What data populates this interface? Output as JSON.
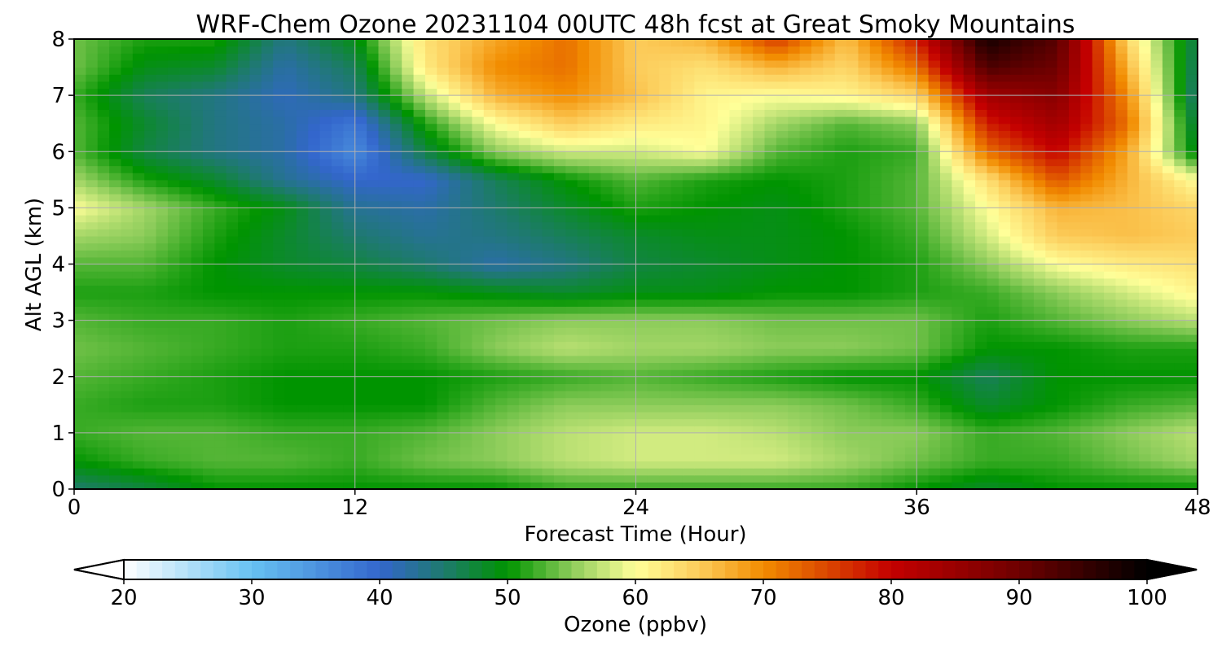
{
  "chart_data": {
    "type": "heatmap",
    "title": "WRF-Chem Ozone  20231104 00UTC 48h fcst at Great Smoky Mountains",
    "xlabel": "Forecast Time (Hour)",
    "ylabel": "Alt AGL (km)",
    "xlim": [
      0,
      48
    ],
    "ylim": [
      0,
      8
    ],
    "x_ticks": [
      0,
      12,
      24,
      36,
      48
    ],
    "x_tick_labels": [
      "0",
      "12",
      "24",
      "36",
      "48"
    ],
    "y_ticks": [
      0,
      1,
      2,
      3,
      4,
      5,
      6,
      7,
      8
    ],
    "y_tick_labels": [
      "0",
      "1",
      "2",
      "3",
      "4",
      "5",
      "6",
      "7",
      "8"
    ],
    "grid": true,
    "colorbar": {
      "label": "Ozone  (ppbv)",
      "orientation": "horizontal",
      "placement": "bottom",
      "min": 20,
      "max": 100,
      "extend": "both",
      "ticks": [
        20,
        30,
        40,
        50,
        60,
        70,
        80,
        90,
        100
      ],
      "tick_labels": [
        "20",
        "30",
        "40",
        "50",
        "60",
        "70",
        "80",
        "90",
        "100"
      ],
      "color_stops": [
        {
          "value": 20,
          "color": "#ffffff"
        },
        {
          "value": 30,
          "color": "#67c2f2"
        },
        {
          "value": 40,
          "color": "#3366cc"
        },
        {
          "value": 45,
          "color": "#1e7a6e"
        },
        {
          "value": 50,
          "color": "#009400"
        },
        {
          "value": 55,
          "color": "#8ccc5a"
        },
        {
          "value": 60,
          "color": "#ffff99"
        },
        {
          "value": 65,
          "color": "#fccc5a"
        },
        {
          "value": 70,
          "color": "#f28c00"
        },
        {
          "value": 80,
          "color": "#c40000"
        },
        {
          "value": 90,
          "color": "#6e0000"
        },
        {
          "value": 100,
          "color": "#000000"
        }
      ]
    },
    "grid_x": [
      0,
      3,
      6,
      9,
      12,
      15,
      18,
      21,
      24,
      27,
      30,
      33,
      36,
      39,
      42,
      45,
      48
    ],
    "grid_y": [
      0,
      0.5,
      1,
      1.5,
      2,
      2.5,
      3,
      3.5,
      4,
      4.5,
      5,
      5.5,
      6,
      6.5,
      7,
      7.5,
      8
    ],
    "z": [
      [
        45,
        47,
        50,
        50,
        50,
        50,
        50,
        52,
        52,
        52,
        52,
        52,
        50,
        48,
        50,
        50,
        50
      ],
      [
        50,
        52,
        53,
        53,
        52,
        54,
        55,
        57,
        58,
        58,
        58,
        56,
        54,
        52,
        52,
        54,
        56
      ],
      [
        52,
        53,
        53,
        52,
        52,
        53,
        55,
        57,
        58,
        58,
        57,
        55,
        55,
        52,
        53,
        55,
        57
      ],
      [
        52,
        51,
        51,
        50,
        50,
        50,
        53,
        55,
        55,
        55,
        55,
        54,
        52,
        48,
        50,
        52,
        53
      ],
      [
        53,
        52,
        51,
        50,
        50,
        50,
        51,
        52,
        53,
        52,
        51,
        50,
        50,
        46,
        50,
        50,
        50
      ],
      [
        54,
        53,
        52,
        51,
        51,
        52,
        55,
        57,
        56,
        56,
        55,
        55,
        54,
        50,
        50,
        51,
        51
      ],
      [
        53,
        52,
        52,
        51,
        52,
        53,
        54,
        55,
        55,
        55,
        54,
        54,
        54,
        51,
        53,
        55,
        57
      ],
      [
        51,
        51,
        50,
        50,
        50,
        50,
        49,
        48,
        49,
        49,
        50,
        50,
        51,
        52,
        55,
        58,
        61
      ],
      [
        53,
        53,
        50,
        48,
        47,
        45,
        42,
        44,
        47,
        48,
        49,
        50,
        51,
        55,
        60,
        62,
        63
      ],
      [
        56,
        55,
        51,
        48,
        45,
        43,
        44,
        46,
        48,
        49,
        49,
        50,
        52,
        58,
        65,
        66,
        65
      ],
      [
        60,
        56,
        52,
        49,
        43,
        42,
        45,
        48,
        51,
        50,
        49,
        51,
        53,
        60,
        67,
        66,
        64
      ],
      [
        56,
        51,
        48,
        43,
        40,
        40,
        46,
        50,
        53,
        51,
        50,
        51,
        53,
        63,
        74,
        67,
        60
      ],
      [
        53,
        47,
        44,
        42,
        36,
        47,
        55,
        58,
        58,
        60,
        53,
        51,
        52,
        72,
        80,
        68,
        48
      ],
      [
        53,
        48,
        44,
        42,
        38,
        51,
        60,
        65,
        62,
        61,
        56,
        53,
        55,
        78,
        84,
        72,
        46
      ],
      [
        52,
        46,
        44,
        41,
        44,
        57,
        67,
        70,
        66,
        61,
        60,
        61,
        64,
        84,
        87,
        70,
        44
      ],
      [
        54,
        49,
        48,
        42,
        46,
        62,
        70,
        72,
        65,
        63,
        67,
        64,
        72,
        93,
        90,
        67,
        45
      ],
      [
        54,
        51,
        51,
        44,
        49,
        63,
        68,
        72,
        65,
        67,
        76,
        66,
        78,
        98,
        92,
        64,
        46
      ]
    ]
  }
}
